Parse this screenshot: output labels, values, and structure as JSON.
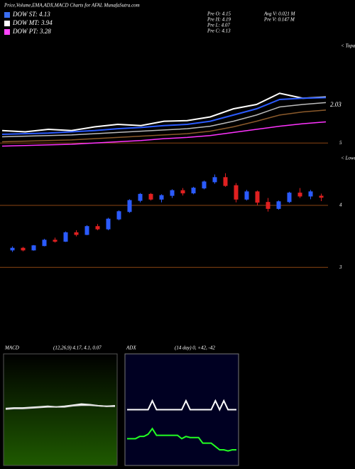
{
  "header": {
    "title": "Price,Volume,EMA,ADX,MACD Charts for AFAL  MunafaSutra.com",
    "legend": [
      {
        "text": "DOW ST: 4.13",
        "color": "#3a6df0"
      },
      {
        "text": "DOW MT: 3.94",
        "color": "#ffffff"
      },
      {
        "text": "DOW PT: 3.28",
        "color": "#ff44ff"
      }
    ],
    "stats": [
      "Pre  O: 4.15",
      "Pre  H: 4.19",
      "Pre  L: 4.07",
      "Pre  C: 4.13",
      "Avg  V: 0.021 M",
      "Pre  V: 0.147 M"
    ]
  },
  "chart_data": [
    {
      "type": "line",
      "annotation": "2.03",
      "side_label": "< Topa",
      "ylim": [
        4.9,
        6.5
      ],
      "yticks": [
        5
      ],
      "series": [
        {
          "color": "#ffffff",
          "values": [
            5.2,
            5.18,
            5.22,
            5.2,
            5.26,
            5.3,
            5.28,
            5.35,
            5.36,
            5.42,
            5.55,
            5.62,
            5.8,
            5.72,
            5.74
          ]
        },
        {
          "color": "#2b5bff",
          "values": [
            5.14,
            5.15,
            5.16,
            5.18,
            5.2,
            5.23,
            5.25,
            5.28,
            5.3,
            5.35,
            5.45,
            5.55,
            5.7,
            5.72,
            5.73
          ]
        },
        {
          "color": "#bbbbbb",
          "values": [
            5.1,
            5.11,
            5.12,
            5.13,
            5.15,
            5.17,
            5.19,
            5.21,
            5.23,
            5.27,
            5.35,
            5.45,
            5.58,
            5.62,
            5.65
          ]
        },
        {
          "color": "#8b5a2b",
          "values": [
            5.02,
            5.03,
            5.04,
            5.05,
            5.07,
            5.09,
            5.11,
            5.13,
            5.15,
            5.19,
            5.26,
            5.35,
            5.45,
            5.5,
            5.53
          ]
        },
        {
          "color": "#ff33ff",
          "values": [
            4.95,
            4.96,
            4.97,
            4.98,
            5.0,
            5.02,
            5.04,
            5.07,
            5.09,
            5.12,
            5.17,
            5.22,
            5.27,
            5.31,
            5.34
          ]
        }
      ]
    },
    {
      "type": "candlestick",
      "side_label": "< Lowes",
      "ylim": [
        2.9,
        4.7
      ],
      "yticks": [
        3,
        4
      ],
      "up_color": "#2b5bff",
      "down_color": "#e02020",
      "open": [
        3.28,
        3.31,
        3.28,
        3.35,
        3.44,
        3.42,
        3.56,
        3.53,
        3.66,
        3.62,
        3.78,
        3.9,
        4.08,
        4.18,
        4.1,
        4.16,
        4.24,
        4.2,
        4.28,
        4.38,
        4.45,
        4.32,
        4.1,
        4.22,
        4.05,
        3.95,
        4.06,
        4.2,
        4.15,
        4.15
      ],
      "high": [
        3.34,
        3.33,
        3.36,
        3.46,
        3.48,
        3.58,
        3.6,
        3.68,
        3.7,
        3.8,
        3.92,
        4.1,
        4.2,
        4.2,
        4.18,
        4.26,
        4.28,
        4.3,
        4.4,
        4.5,
        4.52,
        4.36,
        4.25,
        4.24,
        4.12,
        4.08,
        4.22,
        4.28,
        4.25,
        4.19
      ],
      "low": [
        3.25,
        3.26,
        3.27,
        3.34,
        3.4,
        3.41,
        3.5,
        3.52,
        3.6,
        3.6,
        3.76,
        3.88,
        4.05,
        4.08,
        4.05,
        4.12,
        4.16,
        4.18,
        4.26,
        4.35,
        4.3,
        4.05,
        4.08,
        4.0,
        3.9,
        3.93,
        4.04,
        4.12,
        4.1,
        4.07
      ],
      "close": [
        3.31,
        3.28,
        3.35,
        3.44,
        3.42,
        3.56,
        3.53,
        3.66,
        3.62,
        3.78,
        3.9,
        4.08,
        4.18,
        4.1,
        4.16,
        4.24,
        4.2,
        4.28,
        4.38,
        4.45,
        4.32,
        4.1,
        4.22,
        4.05,
        3.95,
        4.06,
        4.2,
        4.15,
        4.22,
        4.13
      ]
    },
    {
      "type": "line",
      "name": "MACD",
      "params": "(12,26,9) 4.17, 4.1, 0.07",
      "ylim": [
        -1,
        1
      ],
      "series": [
        {
          "color": "#ffffff",
          "values": [
            0.02,
            0.03,
            0.03,
            0.04,
            0.05,
            0.06,
            0.05,
            0.06,
            0.08,
            0.1,
            0.09,
            0.07,
            0.06,
            0.07
          ]
        },
        {
          "color": "#dddddd",
          "values": [
            0.01,
            0.02,
            0.02,
            0.03,
            0.04,
            0.05,
            0.05,
            0.05,
            0.07,
            0.08,
            0.08,
            0.07,
            0.06,
            0.06
          ]
        }
      ]
    },
    {
      "type": "line",
      "name": "ADX",
      "params": "(14 day) 0, +42, -42",
      "ylim": [
        0,
        100
      ],
      "series": [
        {
          "color": "#ffffff",
          "values": [
            50,
            50,
            50,
            50,
            50,
            50,
            58,
            50,
            50,
            50,
            50,
            50,
            50,
            50,
            58,
            50,
            50,
            50,
            50,
            50,
            50,
            58,
            50,
            58,
            50,
            50,
            50
          ]
        },
        {
          "color": "#22ff22",
          "values": [
            24,
            24,
            24,
            26,
            26,
            28,
            33,
            27,
            27,
            27,
            27,
            27,
            27,
            24,
            26,
            25,
            25,
            25,
            20,
            20,
            20,
            17,
            14,
            14,
            13,
            14,
            14
          ]
        }
      ]
    }
  ]
}
